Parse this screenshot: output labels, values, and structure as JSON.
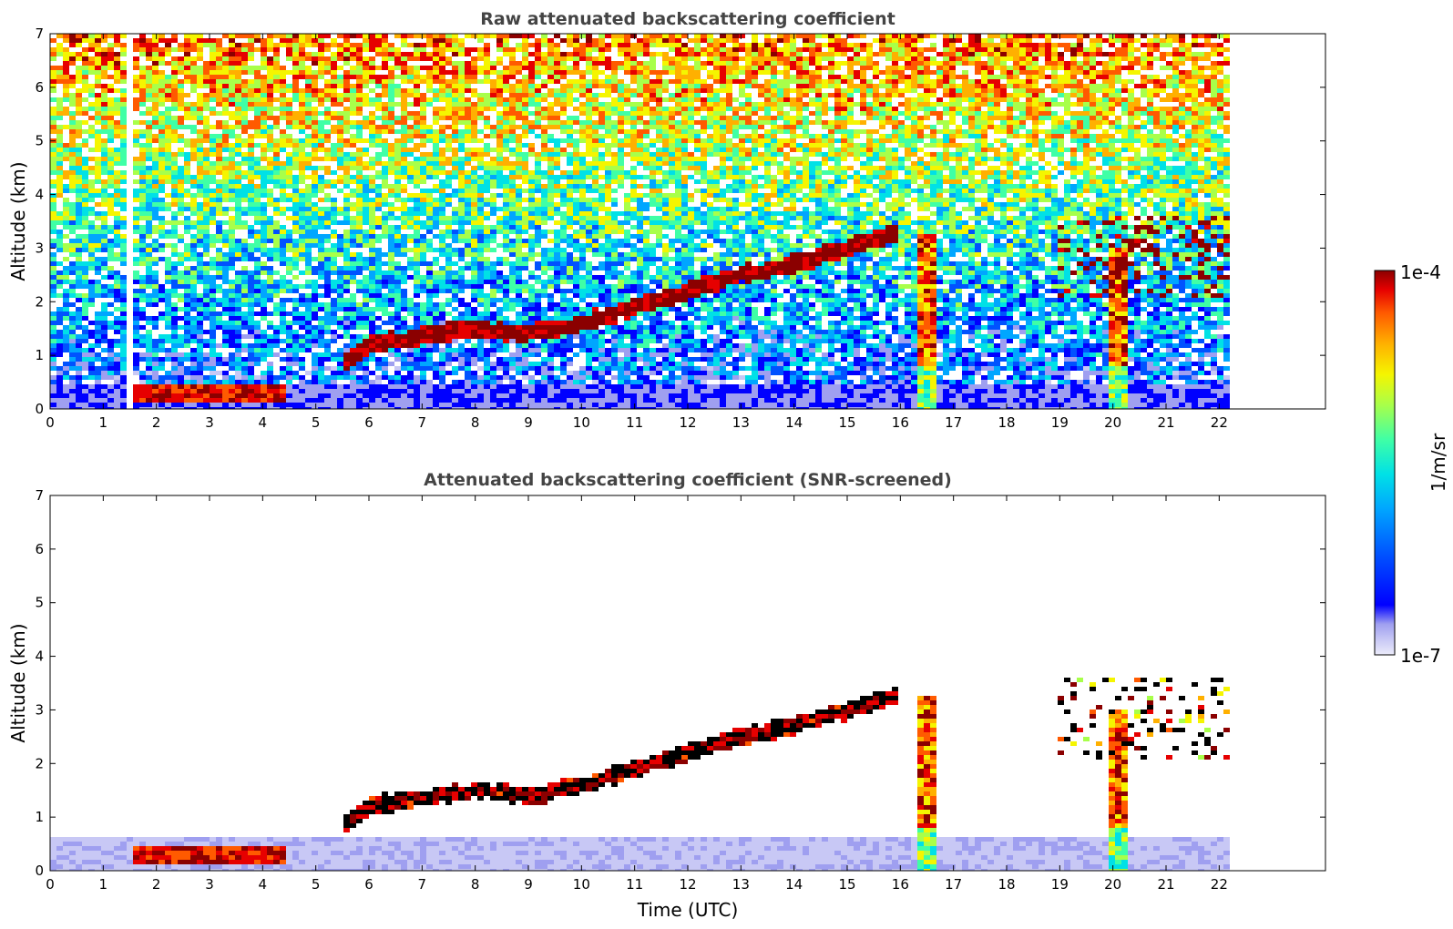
{
  "chart_data": [
    {
      "type": "heatmap",
      "title": "Raw attenuated backscattering coefficient",
      "xlabel": "",
      "ylabel": "Altitude (km)",
      "xlim": [
        0,
        24
      ],
      "ylim": [
        0,
        7
      ],
      "xticks": [
        0,
        1,
        2,
        3,
        4,
        5,
        6,
        7,
        8,
        9,
        10,
        11,
        12,
        13,
        14,
        15,
        16,
        17,
        18,
        19,
        20,
        21,
        22
      ],
      "yticks": [
        0,
        1,
        2,
        3,
        4,
        5,
        6,
        7
      ],
      "data_extent_hours": [
        0,
        22.2
      ],
      "features": [
        {
          "name": "boundary layer",
          "altitude_km": [
            0,
            0.5
          ],
          "level": "high"
        },
        {
          "name": "rising cloud layer",
          "x": [
            5.5,
            6,
            7,
            8,
            9,
            10,
            11,
            12,
            13,
            14,
            15,
            16
          ],
          "y": [
            0.8,
            1.2,
            1.35,
            1.5,
            1.4,
            1.6,
            1.9,
            2.2,
            2.5,
            2.7,
            3.0,
            3.3
          ]
        },
        {
          "name": "precipitation shaft",
          "x": 16.5,
          "altitude_km": [
            0,
            3.3
          ]
        },
        {
          "name": "precipitation shaft",
          "x": 20.1,
          "altitude_km": [
            0,
            3.0
          ]
        },
        {
          "name": "upper cloud",
          "x": [
            19,
            22.2
          ],
          "altitude_km": [
            2.1,
            3.6
          ]
        },
        {
          "name": "data gap",
          "x": 1.5
        }
      ]
    },
    {
      "type": "heatmap",
      "title": "Attenuated backscattering coefficient (SNR-screened)",
      "xlabel": "Time (UTC)",
      "ylabel": "Altitude (km)",
      "xlim": [
        0,
        24
      ],
      "ylim": [
        0,
        7
      ],
      "xticks": [
        0,
        1,
        2,
        3,
        4,
        5,
        6,
        7,
        8,
        9,
        10,
        11,
        12,
        13,
        14,
        15,
        16,
        17,
        18,
        19,
        20,
        21,
        22
      ],
      "yticks": [
        0,
        1,
        2,
        3,
        4,
        5,
        6,
        7
      ],
      "data_extent_hours": [
        0,
        22.2
      ],
      "features": [
        {
          "name": "boundary layer",
          "altitude_km": [
            0,
            0.6
          ],
          "level": "medium"
        },
        {
          "name": "rising cloud layer",
          "x": [
            5.5,
            6,
            7,
            8,
            9,
            10,
            11,
            12,
            13,
            14,
            15,
            16
          ],
          "y": [
            0.8,
            1.2,
            1.35,
            1.5,
            1.4,
            1.6,
            1.9,
            2.2,
            2.5,
            2.7,
            3.0,
            3.3
          ]
        },
        {
          "name": "precipitation shaft",
          "x": 16.5,
          "altitude_km": [
            0,
            3.3
          ]
        },
        {
          "name": "precipitation shaft",
          "x": 20.1,
          "altitude_km": [
            0,
            3.0
          ]
        },
        {
          "name": "upper cloud",
          "x": [
            19,
            22.2
          ],
          "altitude_km": [
            2.1,
            3.6
          ]
        }
      ]
    }
  ],
  "colorbar": {
    "label": "1/m/sr",
    "min_label": "1e-7",
    "max_label": "1e-4",
    "scale": "log",
    "colormap": [
      "#ebebfa",
      "#c8c8f5",
      "#9f9ff0",
      "#0000ff",
      "#0052ff",
      "#00a6ff",
      "#00e1e6",
      "#3fffa6",
      "#a8ff4a",
      "#f5f500",
      "#ffb000",
      "#ff5a00",
      "#e60000",
      "#8b0000"
    ]
  }
}
